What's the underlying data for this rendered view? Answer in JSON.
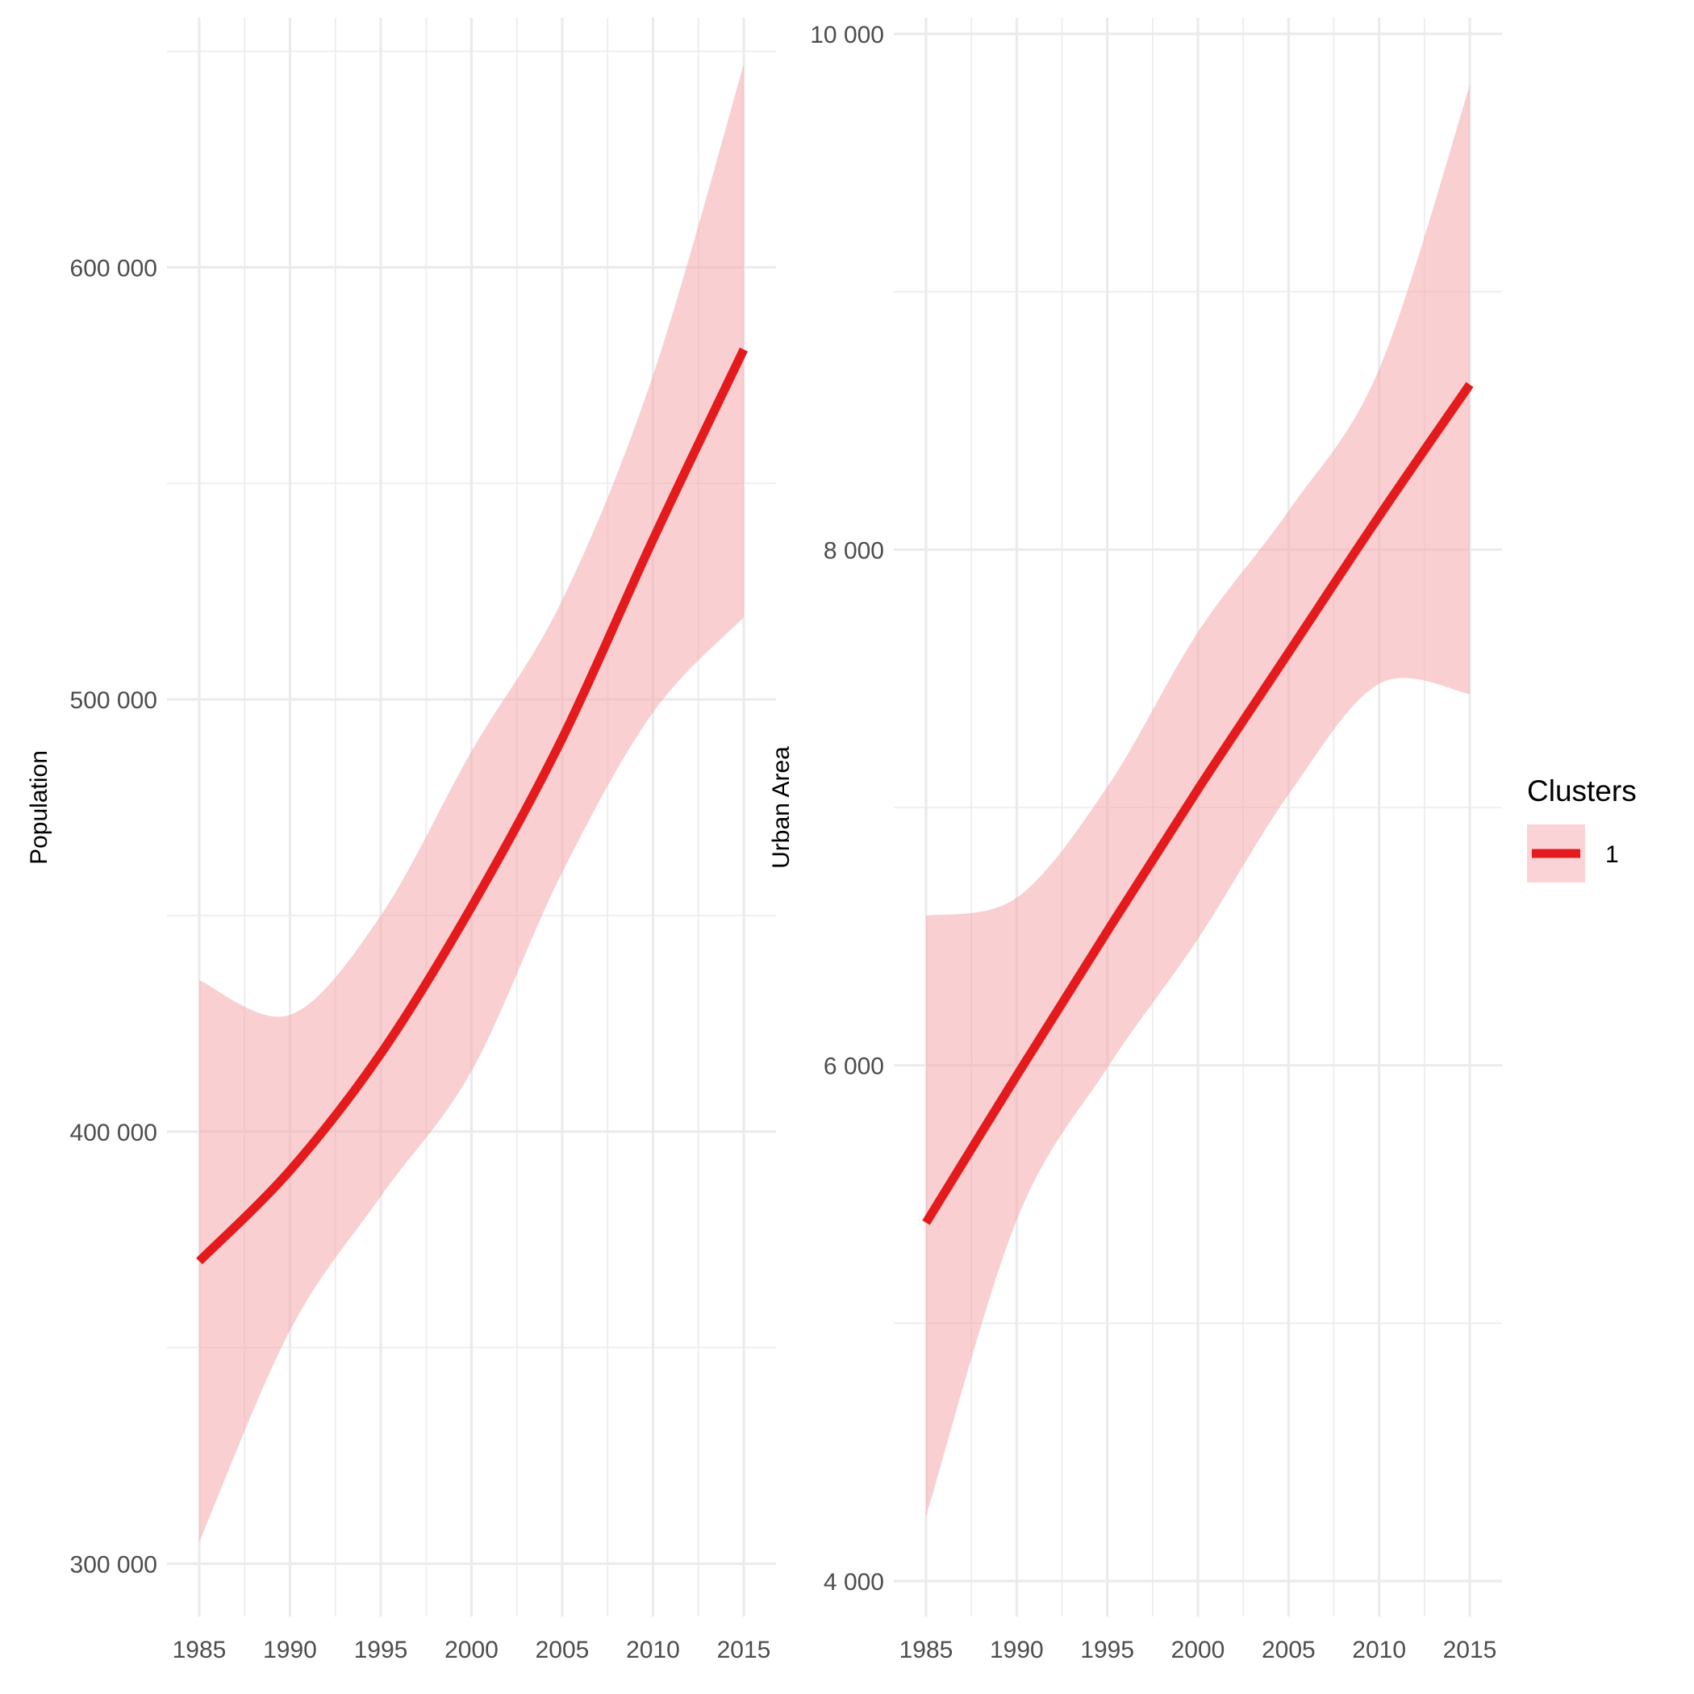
{
  "chart_data": [
    {
      "type": "line",
      "title": "",
      "xlabel": "",
      "ylabel": "Population",
      "xlim": [
        1985,
        2015
      ],
      "ylim": [
        290000,
        660000
      ],
      "x_ticks": [
        1985,
        1990,
        1995,
        2000,
        2005,
        2010,
        2015
      ],
      "x_tick_labels": [
        "1985",
        "1990",
        "1995",
        "2000",
        "2005",
        "2010",
        "2015"
      ],
      "y_ticks": [
        300000,
        400000,
        500000,
        600000
      ],
      "y_tick_labels": [
        "300 000",
        "400 000",
        "500 000",
        "600 000"
      ],
      "y_minor_ticks": [
        350000,
        450000,
        550000,
        650000
      ],
      "grid": true,
      "series": [
        {
          "name": "1",
          "x": [
            1985,
            1990,
            1995,
            2000,
            2005,
            2010,
            2015
          ],
          "values": [
            370000,
            391000,
            418000,
            452000,
            491000,
            537000,
            581000
          ],
          "ci_lower": [
            305000,
            354000,
            385000,
            414000,
            460000,
            497000,
            519000
          ],
          "ci_upper": [
            435000,
            427000,
            450000,
            488000,
            523000,
            575000,
            647000
          ]
        }
      ]
    },
    {
      "type": "line",
      "title": "",
      "xlabel": "",
      "ylabel": "Urban Area",
      "xlim": [
        1985,
        2015
      ],
      "ylim": [
        3900,
        10100
      ],
      "x_ticks": [
        1985,
        1990,
        1995,
        2000,
        2005,
        2010,
        2015
      ],
      "x_tick_labels": [
        "1985",
        "1990",
        "1995",
        "2000",
        "2005",
        "2010",
        "2015"
      ],
      "y_ticks": [
        4000,
        6000,
        8000,
        10000
      ],
      "y_tick_labels": [
        "4 000",
        "6 000",
        "8 000",
        "10 000"
      ],
      "y_minor_ticks": [
        5000,
        7000,
        9000
      ],
      "grid": true,
      "series": [
        {
          "name": "1",
          "x": [
            1985,
            1990,
            1995,
            2000,
            2005,
            2010,
            2015
          ],
          "values": [
            5390,
            5960,
            6520,
            7070,
            7600,
            8130,
            8640
          ],
          "ci_lower": [
            4250,
            5400,
            5990,
            6490,
            7050,
            7480,
            7440
          ],
          "ci_upper": [
            6580,
            6650,
            7080,
            7680,
            8150,
            8700,
            9800
          ]
        }
      ]
    }
  ],
  "legend": {
    "title": "Clusters",
    "items": [
      {
        "label": "1",
        "color": "#e41a1c"
      }
    ]
  },
  "colors": {
    "line": "#e41a1c",
    "ribbon": "#f4a7ac"
  }
}
